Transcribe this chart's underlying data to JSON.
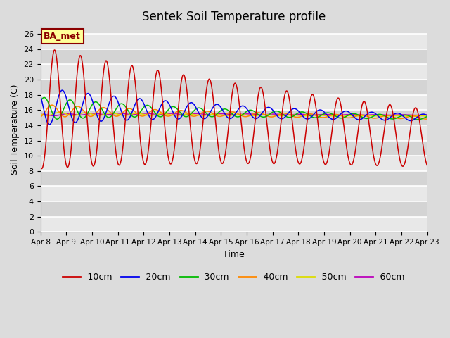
{
  "title": "Sentek Soil Temperature profile",
  "xlabel": "Time",
  "ylabel": "Soil Temperature (C)",
  "annotation": "BA_met",
  "ylim": [
    0,
    27
  ],
  "yticks": [
    0,
    2,
    4,
    6,
    8,
    10,
    12,
    14,
    16,
    18,
    20,
    22,
    24,
    26
  ],
  "figsize": [
    6.4,
    4.8
  ],
  "dpi": 100,
  "bg_color": "#dcdcdc",
  "plot_bg_color": "#dcdcdc",
  "colors": {
    "-10cm": "#cc0000",
    "-20cm": "#0000ee",
    "-30cm": "#00bb00",
    "-40cm": "#ff8800",
    "-50cm": "#dddd00",
    "-60cm": "#bb00bb"
  },
  "x_labels": [
    "Apr 8",
    "Apr 9",
    "Apr 10",
    "Apr 11",
    "Apr 12",
    "Apr 13",
    "Apr 14",
    "Apr 15",
    "Apr 16",
    "Apr 17",
    "Apr 18",
    "Apr 19",
    "Apr 20",
    "Apr 21",
    "Apr 22",
    "Apr 23"
  ]
}
